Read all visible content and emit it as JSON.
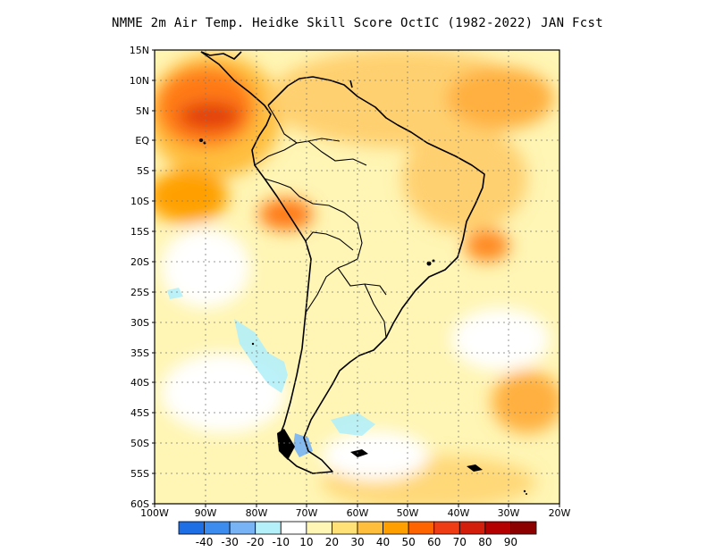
{
  "title": "NMME  2m Air Temp. Heidke Skill Score OctIC (1982-2022) JAN Fcst",
  "lat_labels": [
    "15N",
    "10N",
    "5N",
    "EQ",
    "5S",
    "10S",
    "15S",
    "20S",
    "25S",
    "30S",
    "35S",
    "40S",
    "45S",
    "50S",
    "55S",
    "60S"
  ],
  "lon_labels": [
    "100W",
    "90W",
    "80W",
    "70W",
    "60W",
    "50W",
    "40W",
    "30W",
    "20W"
  ],
  "colorbar": {
    "labels": [
      "-40",
      "-30",
      "-20",
      "-10",
      "10",
      "20",
      "30",
      "40",
      "50",
      "60",
      "70",
      "80",
      "90"
    ],
    "colors": [
      "#1e6ee6",
      "#3c8cf0",
      "#78b4f5",
      "#b4f0fa",
      "#ffffff",
      "#fff5b4",
      "#ffe178",
      "#ffbe3c",
      "#ffa000",
      "#ff6400",
      "#f03c14",
      "#d21e0a",
      "#b40000",
      "#8c0000"
    ]
  }
}
